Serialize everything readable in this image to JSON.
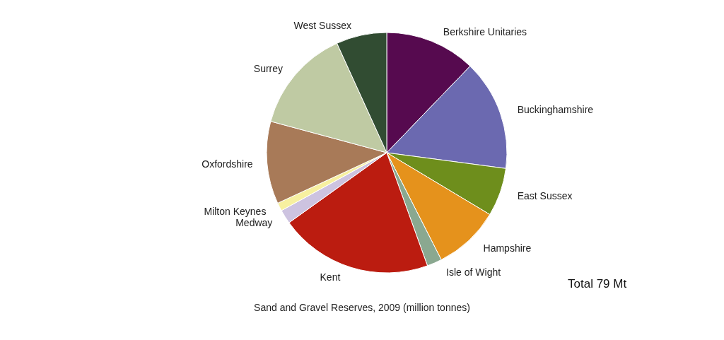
{
  "chart_data": {
    "type": "pie",
    "title": "Sand and Gravel Reserves, 2009 (million tonnes)",
    "categories": [
      "Berkshire Unitaries",
      "Buckinghamshire",
      "East Sussex",
      "Hampshire",
      "Isle of Wight",
      "Kent",
      "Medway",
      "Milton Keynes",
      "Oxfordshire",
      "Surrey",
      "West Sussex"
    ],
    "values": [
      12.2,
      14.9,
      6.5,
      8.9,
      2,
      20.6,
      1.9,
      1.1,
      11.1,
      14,
      6.8
    ],
    "colors": [
      "#560a4f",
      "#6b69b0",
      "#6e8e1c",
      "#e5921c",
      "#8aa890",
      "#bb1c10",
      "#cdc3e0",
      "#f7f0a0",
      "#a87a58",
      "#bfcaa3",
      "#314c32"
    ],
    "annotations": [
      "Total 79 Mt"
    ]
  }
}
